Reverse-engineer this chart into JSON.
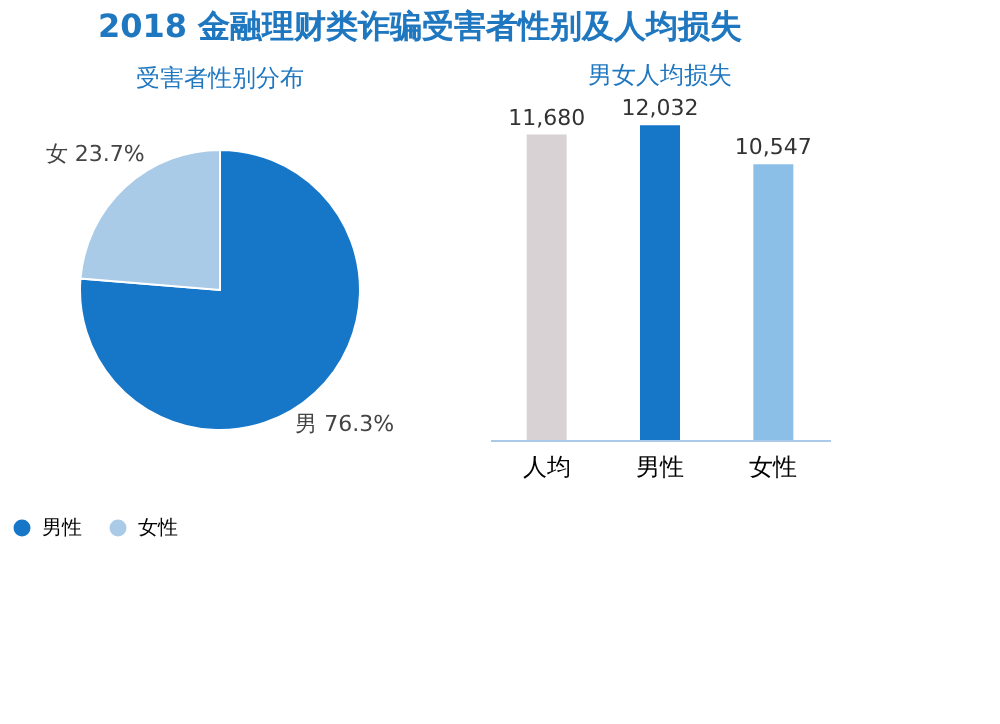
{
  "chart_data": [
    {
      "type": "pie",
      "title": "2018 金融理财类诈骗受害者性别及人均损失",
      "subtitle": "受害者性别分布",
      "categories": [
        "男性",
        "女性"
      ],
      "values": [
        76.3,
        23.7
      ],
      "colors": [
        "#1677c8",
        "#a9cbe8"
      ],
      "value_labels": [
        "男 76.3%",
        "女 23.7%"
      ],
      "legend": "bottom"
    },
    {
      "type": "bar",
      "title": "男女人均损失",
      "categories": [
        "人均",
        "男性",
        "女性"
      ],
      "values": [
        11680,
        12032,
        10547
      ],
      "colors": [
        "#d9d2d4",
        "#1677c8",
        "#8cbfe8"
      ],
      "value_labels": [
        "11,680",
        "12,032",
        "10,547"
      ]
    }
  ]
}
